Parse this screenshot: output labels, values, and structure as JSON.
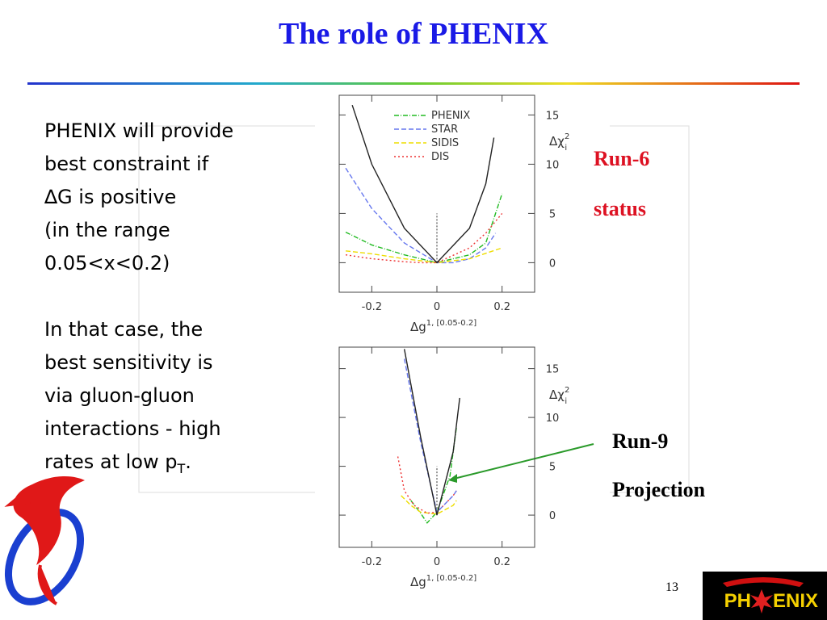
{
  "title": "The role of PHENIX",
  "body": {
    "para1": [
      "PHENIX will provide",
      "best constraint if",
      "∆G is positive",
      "(in the range",
      "0.05<x<0.2)"
    ],
    "para2": [
      "In that case, the",
      "best sensitivity is",
      "via gluon-gluon",
      "interactions - high"
    ],
    "last_line": {
      "text": "rates at low p",
      "sub": "T",
      "end": "."
    }
  },
  "run6": [
    "Run-6",
    "status"
  ],
  "run9": [
    "Run-9",
    "Projection"
  ],
  "page_number": "13",
  "logo": {
    "left": "PH",
    "right": "ENIX"
  },
  "chart_data": [
    {
      "type": "line",
      "xlabel": {
        "text": "Δg",
        "sup": "1, [0.05-0.2]"
      },
      "ylabel": {
        "text": "Δχ",
        "sup": "2",
        "sub": "i"
      },
      "xlim": [
        -0.3,
        0.3
      ],
      "ylim": [
        -3,
        17
      ],
      "xticks": [
        -0.2,
        0,
        0.2
      ],
      "yticks": [
        0,
        5,
        10,
        15
      ],
      "legend": "top-left",
      "series": [
        {
          "name": "PHENIX",
          "color": "#22bb22",
          "dash": "6 2 1 2",
          "x": [
            -0.28,
            -0.2,
            -0.1,
            0,
            0.1,
            0.15,
            0.18,
            0.2
          ],
          "values": [
            3.1,
            1.8,
            0.8,
            0,
            0.8,
            2,
            5,
            7
          ]
        },
        {
          "name": "STAR",
          "color": "#6677ee",
          "dash": "6 3",
          "x": [
            -0.28,
            -0.2,
            -0.1,
            0,
            0.05,
            0.1,
            0.15,
            0.18
          ],
          "values": [
            9.6,
            5.5,
            2,
            0,
            0,
            0.4,
            1.5,
            3
          ]
        },
        {
          "name": "SIDIS",
          "color": "#eedd00",
          "dash": "6 3",
          "x": [
            -0.28,
            -0.2,
            -0.1,
            0,
            0.1,
            0.2
          ],
          "values": [
            1.2,
            0.9,
            0.4,
            0,
            0.4,
            1.5
          ]
        },
        {
          "name": "DIS",
          "color": "#ee3333",
          "dash": "2 3",
          "x": [
            -0.28,
            -0.2,
            -0.1,
            -0.05,
            0,
            0.1,
            0.15,
            0.2
          ],
          "values": [
            0.8,
            0.4,
            0.1,
            0,
            0,
            1.5,
            3,
            5
          ]
        },
        {
          "color": "#222222",
          "x": [
            -0.26,
            -0.2,
            -0.1,
            0,
            0.1,
            0.15,
            0.175
          ],
          "values": [
            16,
            10,
            3.5,
            0,
            3.5,
            8,
            12.7
          ]
        }
      ]
    },
    {
      "type": "line",
      "xlabel": {
        "text": "Δg",
        "sup": "1, [0.05-0.2]"
      },
      "ylabel": {
        "text": "Δχ",
        "sup": "2",
        "sub": "i"
      },
      "xlim": [
        -0.3,
        0.3
      ],
      "ylim": [
        -3.3,
        17.2
      ],
      "xticks": [
        -0.2,
        0,
        0.2
      ],
      "yticks": [
        0,
        5,
        10,
        15
      ],
      "series": [
        {
          "color": "#22bb22",
          "dash": "6 2 1 2",
          "x": [
            -0.08,
            -0.05,
            -0.03,
            0,
            0.04,
            0.06
          ],
          "values": [
            1.5,
            0.2,
            -0.8,
            0.3,
            4,
            9
          ]
        },
        {
          "color": "#eedd00",
          "dash": "6 3",
          "x": [
            -0.11,
            -0.08,
            -0.05,
            0,
            0.05,
            0.06
          ],
          "values": [
            2,
            1,
            0.3,
            0.1,
            1,
            1.5
          ]
        },
        {
          "color": "#ee3333",
          "dash": "2 3",
          "x": [
            -0.12,
            -0.1,
            -0.07,
            -0.03,
            0,
            0.05,
            0.06
          ],
          "values": [
            6,
            2.5,
            1,
            0.2,
            0.3,
            2,
            2.5
          ]
        },
        {
          "color": "#6677ee",
          "dash": "6 3",
          "x": [
            -0.1,
            -0.05,
            0,
            0.05,
            0.06
          ],
          "values": [
            16,
            7.5,
            0.3,
            2,
            2.5
          ]
        },
        {
          "color": "#222222",
          "x": [
            -0.1,
            -0.05,
            0,
            0.05,
            0.07
          ],
          "values": [
            17,
            8,
            0,
            6.5,
            12
          ]
        }
      ]
    }
  ]
}
